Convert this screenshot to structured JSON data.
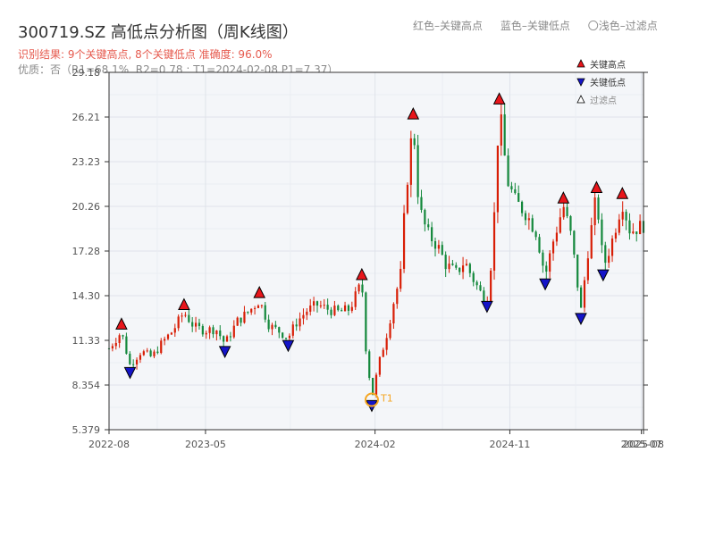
{
  "header": {
    "title": "300719.SZ 高低点分析图（周K线图）",
    "legend_high": "红色–关键高点",
    "legend_low": "蓝色–关键低点",
    "legend_filtered": "〇浅色–过滤点",
    "result_line": "识别结果: 9个关键高点, 8个关键低点  准确度: 96.0%",
    "quality_line": "优质：否（R1=68.1%, R2=0.78 ; T1=2024-02-08 P1=7.37）"
  },
  "legend": {
    "high": "关键高点",
    "low": "关键低点",
    "filtered": "过滤点"
  },
  "colors": {
    "up": "#d81e06",
    "down": "#13883b",
    "high_marker": "#e8151b",
    "low_marker": "#1414c8",
    "t1": "#f5a623",
    "axis_text": "#555555"
  },
  "chart_data": {
    "type": "candlestick",
    "ylim": [
      5.379,
      29.18
    ],
    "yticks": [
      "5.379",
      "8.354",
      "11.33",
      "14.30",
      "17.28",
      "20.26",
      "23.23",
      "26.21",
      "29.18"
    ],
    "xticks": [
      {
        "t": 0.0,
        "label": "2022-08"
      },
      {
        "t": 0.1805,
        "label": "2023-05"
      },
      {
        "t": 0.4977,
        "label": "2024-02"
      },
      {
        "t": 0.7499,
        "label": "2024-11"
      },
      {
        "t": 0.996,
        "label": "2025-07"
      },
      {
        "t": 1.0,
        "label": "2025-08"
      }
    ],
    "key_highs": [
      {
        "t": 0.0233,
        "price": 11.9
      },
      {
        "t": 0.1403,
        "price": 13.2
      },
      {
        "t": 0.2813,
        "price": 14.0
      },
      {
        "t": 0.473,
        "price": 15.2
      },
      {
        "t": 0.5691,
        "price": 25.9
      },
      {
        "t": 0.7301,
        "price": 26.9
      },
      {
        "t": 0.8501,
        "price": 20.3
      },
      {
        "t": 0.9121,
        "price": 21.0
      },
      {
        "t": 0.9604,
        "price": 20.6
      }
    ],
    "key_lows": [
      {
        "t": 0.0393,
        "price": 9.7
      },
      {
        "t": 0.2168,
        "price": 11.1
      },
      {
        "t": 0.3352,
        "price": 11.5
      },
      {
        "t": 0.4916,
        "price": 7.5
      },
      {
        "t": 0.7072,
        "price": 14.1
      },
      {
        "t": 0.8161,
        "price": 15.6
      },
      {
        "t": 0.8829,
        "price": 13.3
      },
      {
        "t": 0.9245,
        "price": 16.2
      }
    ],
    "t1": {
      "t": 0.4916,
      "price": 7.37,
      "label": "T1"
    },
    "price_path": [
      [
        0.0,
        10.8
      ],
      [
        0.023,
        11.9
      ],
      [
        0.039,
        9.7
      ],
      [
        0.06,
        10.6
      ],
      [
        0.08,
        10.2
      ],
      [
        0.1,
        11.2
      ],
      [
        0.12,
        12.0
      ],
      [
        0.14,
        13.2
      ],
      [
        0.16,
        12.2
      ],
      [
        0.18,
        12.0
      ],
      [
        0.2,
        12.1
      ],
      [
        0.217,
        11.1
      ],
      [
        0.24,
        12.6
      ],
      [
        0.26,
        13.2
      ],
      [
        0.281,
        14.0
      ],
      [
        0.3,
        12.3
      ],
      [
        0.32,
        11.9
      ],
      [
        0.335,
        11.5
      ],
      [
        0.35,
        12.5
      ],
      [
        0.37,
        13.3
      ],
      [
        0.39,
        13.7
      ],
      [
        0.41,
        13.4
      ],
      [
        0.43,
        13.2
      ],
      [
        0.45,
        13.4
      ],
      [
        0.473,
        15.2
      ],
      [
        0.48,
        11.0
      ],
      [
        0.492,
        7.5
      ],
      [
        0.505,
        9.8
      ],
      [
        0.52,
        11.8
      ],
      [
        0.535,
        14.3
      ],
      [
        0.545,
        15.5
      ],
      [
        0.555,
        21.0
      ],
      [
        0.569,
        25.9
      ],
      [
        0.58,
        20.2
      ],
      [
        0.595,
        18.5
      ],
      [
        0.615,
        17.6
      ],
      [
        0.63,
        16.4
      ],
      [
        0.65,
        15.8
      ],
      [
        0.665,
        16.6
      ],
      [
        0.68,
        15.5
      ],
      [
        0.695,
        14.5
      ],
      [
        0.707,
        14.1
      ],
      [
        0.718,
        17.5
      ],
      [
        0.73,
        26.9
      ],
      [
        0.745,
        22.0
      ],
      [
        0.76,
        20.6
      ],
      [
        0.78,
        19.8
      ],
      [
        0.8,
        18.5
      ],
      [
        0.816,
        15.6
      ],
      [
        0.83,
        17.8
      ],
      [
        0.85,
        20.3
      ],
      [
        0.865,
        18.2
      ],
      [
        0.883,
        13.3
      ],
      [
        0.895,
        17.0
      ],
      [
        0.912,
        21.0
      ],
      [
        0.925,
        16.2
      ],
      [
        0.94,
        17.8
      ],
      [
        0.96,
        20.6
      ],
      [
        0.975,
        18.6
      ],
      [
        1.0,
        19.0
      ]
    ]
  }
}
